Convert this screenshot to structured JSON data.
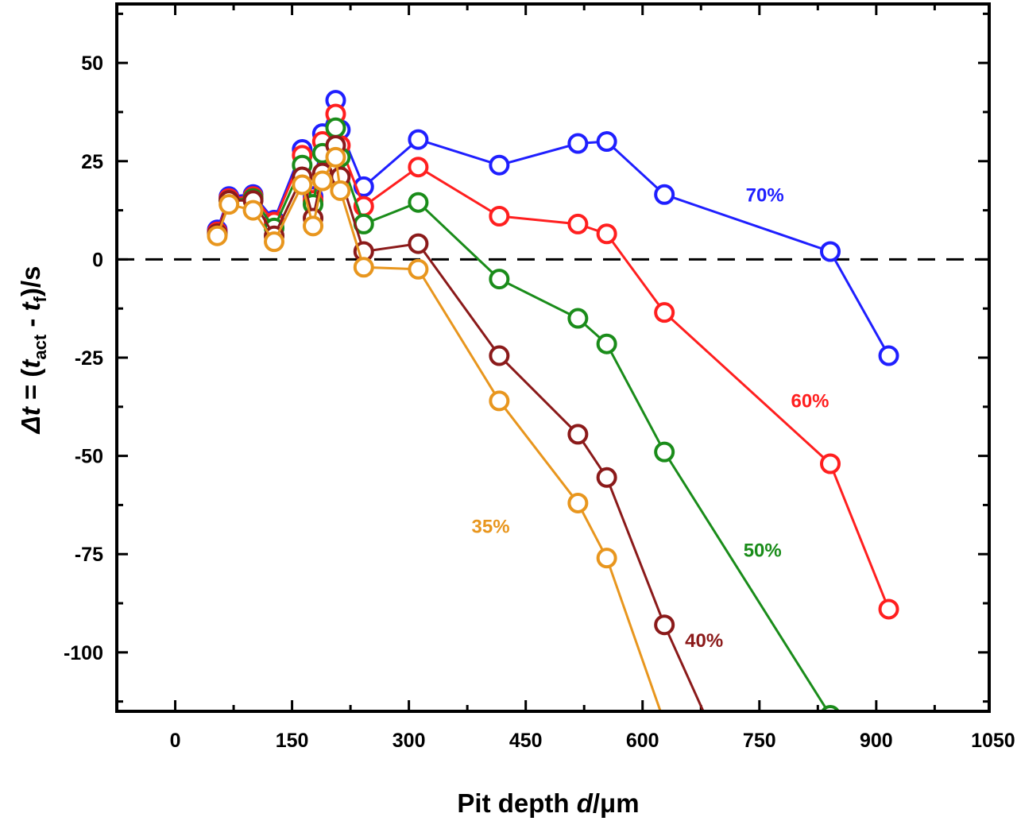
{
  "chart_data": {
    "type": "line",
    "title": "",
    "xlabel": "Pit depth d/μm",
    "xlabel_parts": {
      "pre": "Pit depth ",
      "var": "d",
      "post": "/μm"
    },
    "ylabel": "Δt = (t_act - t_f)/s",
    "ylabel_parts": {
      "delta": "Δ",
      "t": "t",
      "eq": " = (",
      "t1": "t",
      "sub1": "act",
      "minus": " - ",
      "t2": "t",
      "sub2": "f",
      "end": ")/s"
    },
    "xlim": [
      -75,
      1045
    ],
    "ylim": [
      -115,
      65
    ],
    "xticks": [
      0,
      150,
      300,
      450,
      600,
      750,
      900,
      1050
    ],
    "xtick_labels": [
      "0",
      "150",
      "300",
      "450",
      "600",
      "750",
      "900",
      "1050"
    ],
    "yticks": [
      50,
      25,
      0,
      -25,
      -50,
      -75,
      -100
    ],
    "ytick_labels": [
      "50",
      "25",
      "0",
      "-25",
      "-50",
      "-75",
      "-100"
    ],
    "reference_line": {
      "y": 0,
      "style": "dashed"
    },
    "x": [
      54,
      69,
      100,
      127,
      163,
      177,
      189,
      206,
      212,
      242,
      312,
      416,
      517,
      554,
      628,
      841,
      916
    ],
    "series": [
      {
        "name": "70%",
        "color": "#1f1fff",
        "label_at": [
          757,
          16.4
        ],
        "values": [
          7.5,
          16,
          16.5,
          10,
          28,
          16,
          32,
          40.5,
          33,
          18.5,
          30.5,
          24,
          29.5,
          30,
          16.5,
          2,
          -24.5
        ]
      },
      {
        "name": "60%",
        "color": "#ff1f1f",
        "label_at": [
          815,
          -36
        ],
        "values": [
          7,
          15.5,
          16,
          9.5,
          26.5,
          15,
          30,
          37,
          29,
          13.5,
          23.5,
          11,
          9,
          6.5,
          -13.5,
          -52,
          -89
        ]
      },
      {
        "name": "50%",
        "color": "#1a8c1a",
        "label_at": [
          754,
          -74
        ],
        "values": [
          6.5,
          15,
          15.5,
          8,
          24,
          14,
          27,
          33.5,
          26,
          9,
          14.5,
          -5,
          -15,
          -21.5,
          -49,
          -116,
          null
        ]
      },
      {
        "name": "40%",
        "color": "#8b1a1a",
        "label_at": [
          679,
          -97
        ],
        "values": [
          6.5,
          15,
          15,
          6,
          21,
          10.5,
          22,
          29,
          21,
          2,
          4,
          -24.5,
          -44.5,
          -55.5,
          -93,
          null,
          null
        ]
      },
      {
        "name": "35%",
        "color": "#e8961e",
        "label_at": [
          405,
          -68
        ],
        "values": [
          6,
          14,
          12.5,
          4.5,
          19,
          8.5,
          20,
          26,
          17.5,
          -2,
          -2.5,
          -36,
          -62,
          -76,
          null,
          null,
          null
        ]
      }
    ],
    "grid": false,
    "legend": "none (inline labels)"
  }
}
